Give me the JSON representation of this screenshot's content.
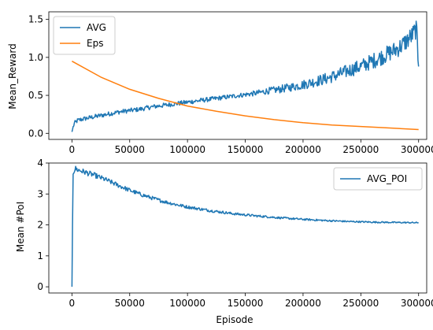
{
  "chart_data": [
    {
      "type": "line",
      "xlabel": "",
      "ylabel": "Mean_Reward",
      "xlim": [
        -20000,
        307000
      ],
      "ylim": [
        -0.08,
        1.6
      ],
      "xticks": [
        0,
        50000,
        100000,
        150000,
        200000,
        250000,
        300000
      ],
      "yticks": [
        0.0,
        0.5,
        1.0,
        1.5
      ],
      "xtick_labels": [
        "0",
        "50000",
        "100000",
        "150000",
        "200000",
        "250000",
        "300000"
      ],
      "ytick_labels": [
        "0.0",
        "0.5",
        "1.0",
        "1.5"
      ],
      "legend_position": "upper-left",
      "series": [
        {
          "name": "AVG",
          "color": "#1f77b4",
          "noisy": true,
          "x": [
            0,
            2000,
            5000,
            10000,
            20000,
            30000,
            40000,
            50000,
            60000,
            70000,
            80000,
            90000,
            100000,
            110000,
            120000,
            130000,
            140000,
            150000,
            160000,
            170000,
            180000,
            190000,
            200000,
            210000,
            220000,
            230000,
            240000,
            250000,
            260000,
            270000,
            280000,
            285000,
            290000,
            295000,
            298000,
            300000
          ],
          "y": [
            0.02,
            0.13,
            0.17,
            0.19,
            0.22,
            0.25,
            0.28,
            0.3,
            0.32,
            0.35,
            0.37,
            0.39,
            0.41,
            0.43,
            0.45,
            0.47,
            0.49,
            0.51,
            0.53,
            0.56,
            0.58,
            0.61,
            0.64,
            0.68,
            0.72,
            0.77,
            0.83,
            0.88,
            0.95,
            1.02,
            1.1,
            1.15,
            1.22,
            1.3,
            1.38,
            0.88
          ]
        },
        {
          "name": "Eps",
          "color": "#ff7f0e",
          "noisy": false,
          "x": [
            0,
            25000,
            50000,
            75000,
            100000,
            125000,
            150000,
            175000,
            200000,
            225000,
            250000,
            275000,
            300000
          ],
          "y": [
            0.95,
            0.74,
            0.58,
            0.46,
            0.36,
            0.29,
            0.23,
            0.18,
            0.14,
            0.11,
            0.09,
            0.07,
            0.05
          ]
        }
      ]
    },
    {
      "type": "line",
      "xlabel": "Episode",
      "ylabel": "Mean #PoI",
      "xlim": [
        -20000,
        307000
      ],
      "ylim": [
        -0.2,
        4.0
      ],
      "xticks": [
        0,
        50000,
        100000,
        150000,
        200000,
        250000,
        300000
      ],
      "yticks": [
        0,
        1,
        2,
        3,
        4
      ],
      "xtick_labels": [
        "0",
        "50000",
        "100000",
        "150000",
        "200000",
        "250000",
        "300000"
      ],
      "ytick_labels": [
        "0",
        "1",
        "2",
        "3",
        "4"
      ],
      "legend_position": "upper-right",
      "series": [
        {
          "name": "AVG_POI",
          "color": "#1f77b4",
          "noisy": true,
          "x": [
            0,
            1000,
            3000,
            5000,
            10000,
            20000,
            30000,
            40000,
            50000,
            60000,
            70000,
            80000,
            90000,
            100000,
            120000,
            140000,
            160000,
            180000,
            200000,
            220000,
            240000,
            260000,
            280000,
            300000
          ],
          "y": [
            0.0,
            3.7,
            3.82,
            3.78,
            3.72,
            3.6,
            3.45,
            3.28,
            3.12,
            2.98,
            2.86,
            2.75,
            2.66,
            2.58,
            2.46,
            2.36,
            2.29,
            2.23,
            2.18,
            2.14,
            2.11,
            2.09,
            2.08,
            2.07
          ]
        }
      ]
    }
  ]
}
